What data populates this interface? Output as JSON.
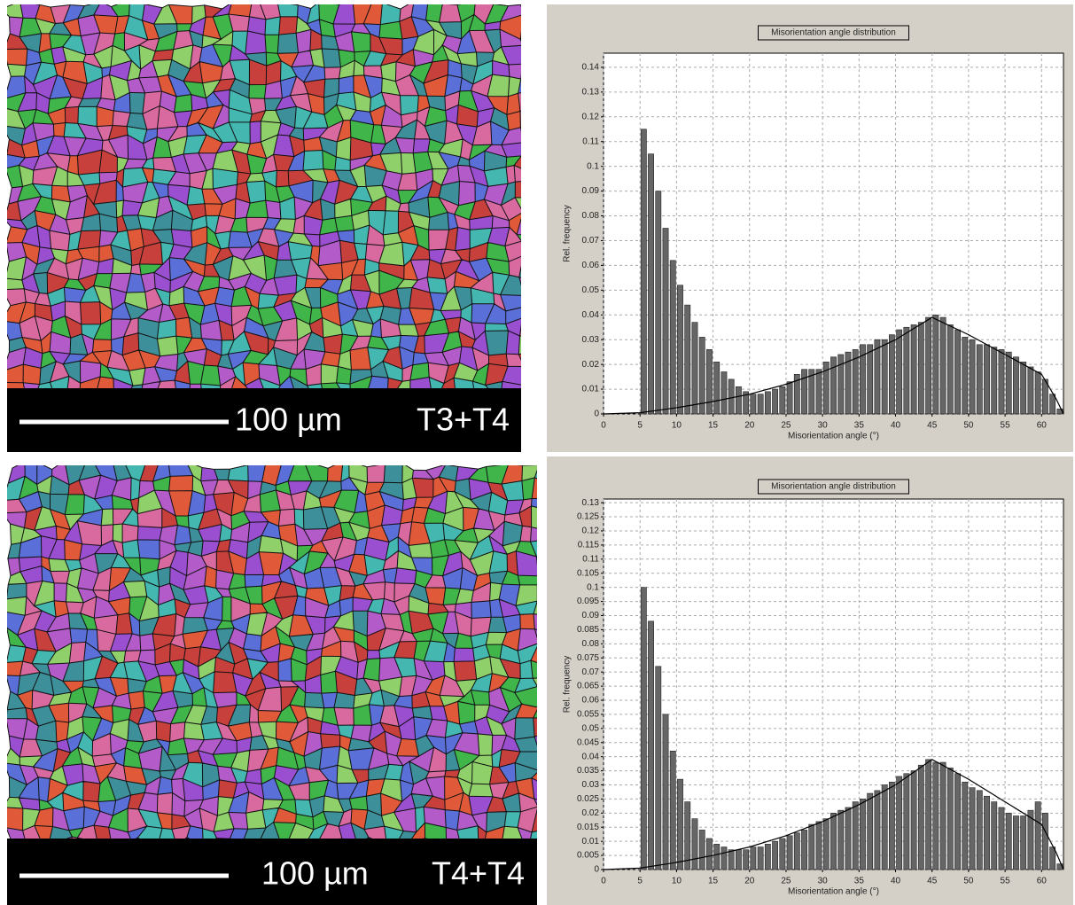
{
  "panels": [
    {
      "scale_label": "100 µm",
      "sample": "T3+T4"
    },
    {
      "scale_label": "100 µm",
      "sample": "T4+T4"
    }
  ],
  "chart_data": [
    {
      "type": "histogram",
      "title": "Misorientation angle distribution",
      "xlabel": "Misorientation angle (°)",
      "ylabel": "Rel. frequency",
      "color": "#666666",
      "curve_color": "#000000",
      "grid": true,
      "bins": [
        5,
        6,
        7,
        8,
        9,
        10,
        11,
        12,
        13,
        14,
        15,
        16,
        17,
        18,
        19,
        20,
        21,
        22,
        23,
        24,
        25,
        26,
        27,
        28,
        29,
        30,
        31,
        32,
        33,
        34,
        35,
        36,
        37,
        38,
        39,
        40,
        41,
        42,
        43,
        44,
        45,
        46,
        47,
        48,
        49,
        50,
        51,
        52,
        53,
        54,
        55,
        56,
        57,
        58,
        59,
        60,
        61,
        62,
        63
      ],
      "values": [
        0.115,
        0.105,
        0.09,
        0.075,
        0.062,
        0.052,
        0.044,
        0.037,
        0.031,
        0.026,
        0.021,
        0.017,
        0.014,
        0.011,
        0.009,
        0.008,
        0.008,
        0.009,
        0.01,
        0.011,
        0.013,
        0.016,
        0.018,
        0.018,
        0.018,
        0.021,
        0.023,
        0.024,
        0.025,
        0.026,
        0.028,
        0.028,
        0.03,
        0.03,
        0.032,
        0.034,
        0.035,
        0.036,
        0.037,
        0.039,
        0.04,
        0.039,
        0.036,
        0.034,
        0.031,
        0.03,
        0.028,
        0.028,
        0.027,
        0.026,
        0.025,
        0.023,
        0.021,
        0.019,
        0.017,
        0.014,
        0.008,
        0.002
      ],
      "curve": {
        "x": [
          0,
          5,
          10,
          15,
          20,
          25,
          30,
          35,
          40,
          45,
          50,
          55,
          60,
          62,
          63
        ],
        "values": [
          0,
          0.0005,
          0.0025,
          0.005,
          0.008,
          0.012,
          0.017,
          0.023,
          0.03,
          0.039,
          0.032,
          0.024,
          0.016,
          0.006,
          0
        ]
      },
      "xlim": [
        0,
        63
      ],
      "xticks": [
        0,
        5,
        10,
        15,
        20,
        25,
        30,
        35,
        40,
        45,
        50,
        55,
        60
      ],
      "ylim": [
        0,
        0.1457
      ],
      "yticks": [
        0,
        0.01,
        0.02,
        0.03,
        0.04,
        0.05,
        0.06,
        0.07,
        0.08,
        0.09,
        0.1,
        0.11,
        0.12,
        0.13,
        0.14
      ]
    },
    {
      "type": "histogram",
      "title": "Misorientation angle distribution",
      "xlabel": "Misorientation angle (°)",
      "ylabel": "Rel. frequency",
      "color": "#666666",
      "curve_color": "#000000",
      "grid": true,
      "bins": [
        5,
        6,
        7,
        8,
        9,
        10,
        11,
        12,
        13,
        14,
        15,
        16,
        17,
        18,
        19,
        20,
        21,
        22,
        23,
        24,
        25,
        26,
        27,
        28,
        29,
        30,
        31,
        32,
        33,
        34,
        35,
        36,
        37,
        38,
        39,
        40,
        41,
        42,
        43,
        44,
        45,
        46,
        47,
        48,
        49,
        50,
        51,
        52,
        53,
        54,
        55,
        56,
        57,
        58,
        59,
        60,
        61,
        62,
        63
      ],
      "values": [
        0.1,
        0.088,
        0.072,
        0.055,
        0.042,
        0.032,
        0.024,
        0.018,
        0.014,
        0.011,
        0.009,
        0.008,
        0.007,
        0.007,
        0.007,
        0.008,
        0.008,
        0.009,
        0.01,
        0.011,
        0.012,
        0.013,
        0.014,
        0.016,
        0.017,
        0.018,
        0.02,
        0.021,
        0.022,
        0.024,
        0.025,
        0.027,
        0.028,
        0.03,
        0.031,
        0.033,
        0.034,
        0.035,
        0.037,
        0.039,
        0.038,
        0.038,
        0.036,
        0.034,
        0.031,
        0.029,
        0.028,
        0.026,
        0.024,
        0.022,
        0.02,
        0.019,
        0.019,
        0.021,
        0.024,
        0.02,
        0.008,
        0.002
      ],
      "curve": {
        "x": [
          0,
          5,
          10,
          15,
          20,
          25,
          30,
          35,
          40,
          45,
          50,
          55,
          60,
          62,
          63
        ],
        "values": [
          0,
          0.0005,
          0.0025,
          0.005,
          0.008,
          0.012,
          0.017,
          0.023,
          0.03,
          0.039,
          0.032,
          0.024,
          0.016,
          0.006,
          0
        ]
      },
      "xlim": [
        0,
        63
      ],
      "xticks": [
        0,
        5,
        10,
        15,
        20,
        25,
        30,
        35,
        40,
        45,
        50,
        55,
        60
      ],
      "ylim": [
        0,
        0.1313
      ],
      "yticks": [
        0,
        0.005,
        0.01,
        0.015,
        0.02,
        0.025,
        0.03,
        0.035,
        0.04,
        0.045,
        0.05,
        0.055,
        0.06,
        0.065,
        0.07,
        0.075,
        0.08,
        0.085,
        0.09,
        0.095,
        0.1,
        0.105,
        0.11,
        0.115,
        0.12,
        0.125,
        0.13
      ]
    }
  ]
}
